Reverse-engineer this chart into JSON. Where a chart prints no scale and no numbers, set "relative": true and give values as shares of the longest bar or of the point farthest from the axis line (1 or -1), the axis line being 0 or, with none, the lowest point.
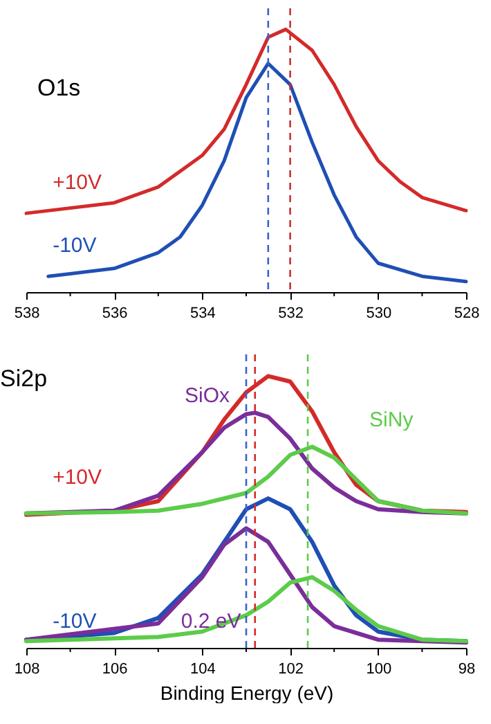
{
  "chart_data": [
    {
      "type": "line",
      "title": "O1s",
      "relative": true,
      "xlim": [
        538,
        528
      ],
      "xticks": [
        538,
        {
          "value": 537,
          "label": null
        },
        536,
        {
          "value": 535,
          "label": null
        },
        534,
        {
          "value": 533,
          "label": null
        },
        532,
        {
          "value": 531,
          "label": null
        },
        530,
        {
          "value": 529,
          "label": null
        },
        528
      ],
      "series": [
        {
          "name": "+10V",
          "color": "#d42a2a",
          "x": [
            538,
            536,
            535,
            534,
            533.5,
            533,
            532.5,
            532.1,
            531.5,
            531,
            530.5,
            530,
            529.5,
            529,
            528
          ],
          "values": [
            0.3,
            0.34,
            0.4,
            0.52,
            0.62,
            0.79,
            0.97,
            1.0,
            0.92,
            0.79,
            0.63,
            0.5,
            0.42,
            0.36,
            0.31
          ]
        },
        {
          "name": "-10V",
          "color": "#1f4fb4",
          "x": [
            537.5,
            537,
            536,
            535,
            534.5,
            534,
            533.5,
            533,
            532.5,
            532,
            531.5,
            531,
            530.5,
            530,
            529,
            528
          ],
          "values": [
            0.06,
            0.07,
            0.09,
            0.15,
            0.21,
            0.33,
            0.5,
            0.74,
            0.87,
            0.79,
            0.57,
            0.37,
            0.21,
            0.11,
            0.06,
            0.04
          ]
        }
      ],
      "ref_lines": [
        {
          "axis": "x",
          "value": 532.5,
          "color": "#3b62c8",
          "line_style": "dashed"
        },
        {
          "axis": "x",
          "value": 532.0,
          "color": "#c83030",
          "line_style": "dashed"
        }
      ]
    },
    {
      "type": "line",
      "title": "Si2p",
      "xlabel": "Binding Energy (eV)",
      "relative": true,
      "xlim": [
        108,
        98
      ],
      "xticks": [
        108,
        {
          "value": 107,
          "label": null
        },
        106,
        {
          "value": 105,
          "label": null
        },
        104,
        {
          "value": 103,
          "label": null
        },
        102,
        {
          "value": 101,
          "label": null
        },
        100,
        {
          "value": 99,
          "label": null
        },
        98
      ],
      "series": [
        {
          "name": "+10V",
          "color": "#d42a2a",
          "x": [
            108,
            106,
            105,
            104,
            103.5,
            103,
            102.5,
            102,
            101.5,
            101,
            100.5,
            100,
            99,
            98
          ],
          "values": [
            0.49,
            0.505,
            0.54,
            0.72,
            0.84,
            0.94,
            1.0,
            0.98,
            0.87,
            0.72,
            0.6,
            0.54,
            0.505,
            0.5
          ]
        },
        {
          "name": "SiOx",
          "color": "#7a2e9a",
          "x": [
            108,
            106,
            105,
            104,
            103.5,
            103,
            102.8,
            102.5,
            102,
            101.5,
            101,
            100.5,
            100,
            99,
            98
          ],
          "values": [
            0.495,
            0.505,
            0.56,
            0.72,
            0.81,
            0.86,
            0.865,
            0.85,
            0.77,
            0.66,
            0.59,
            0.54,
            0.51,
            0.5,
            0.495
          ]
        },
        {
          "name": "SiNy",
          "color": "#5ccc4a",
          "x": [
            108,
            106,
            105,
            104,
            103,
            102.5,
            102,
            101.5,
            101,
            100.5,
            100,
            99,
            98
          ],
          "values": [
            0.495,
            0.5,
            0.505,
            0.53,
            0.57,
            0.63,
            0.71,
            0.74,
            0.7,
            0.62,
            0.54,
            0.505,
            0.495
          ]
        },
        {
          "name": "-10V",
          "color": "#1f4fb4",
          "x": [
            108,
            106,
            105,
            104,
            103.5,
            103,
            102.5,
            102,
            101.5,
            101,
            100.5,
            100,
            99,
            98
          ],
          "values": [
            0.03,
            0.055,
            0.11,
            0.27,
            0.39,
            0.51,
            0.55,
            0.51,
            0.39,
            0.23,
            0.12,
            0.06,
            0.03,
            0.025
          ]
        },
        {
          "color": "#7a2e9a",
          "x": [
            108,
            105,
            104,
            103.5,
            103,
            102.5,
            102,
            101.5,
            101,
            100,
            98
          ],
          "values": [
            0.03,
            0.09,
            0.26,
            0.38,
            0.44,
            0.39,
            0.27,
            0.15,
            0.08,
            0.03,
            0.02
          ]
        },
        {
          "color": "#5ccc4a",
          "x": [
            108,
            105,
            104,
            103,
            102.5,
            102,
            101.5,
            101,
            100.5,
            100,
            99,
            98
          ],
          "values": [
            0.025,
            0.04,
            0.06,
            0.12,
            0.17,
            0.24,
            0.26,
            0.21,
            0.14,
            0.08,
            0.03,
            0.025
          ]
        }
      ],
      "ref_lines": [
        {
          "axis": "x",
          "value": 103.0,
          "color": "#3b62c8",
          "line_style": "dashed"
        },
        {
          "axis": "x",
          "value": 102.8,
          "color": "#d42a2a",
          "line_style": "dashed"
        },
        {
          "axis": "x",
          "value": 101.6,
          "color": "#5ccc4a",
          "line_style": "dashed"
        }
      ],
      "annotations": [
        {
          "text": "0.2 eV",
          "x": 103.8,
          "y": 0.1
        }
      ]
    }
  ]
}
